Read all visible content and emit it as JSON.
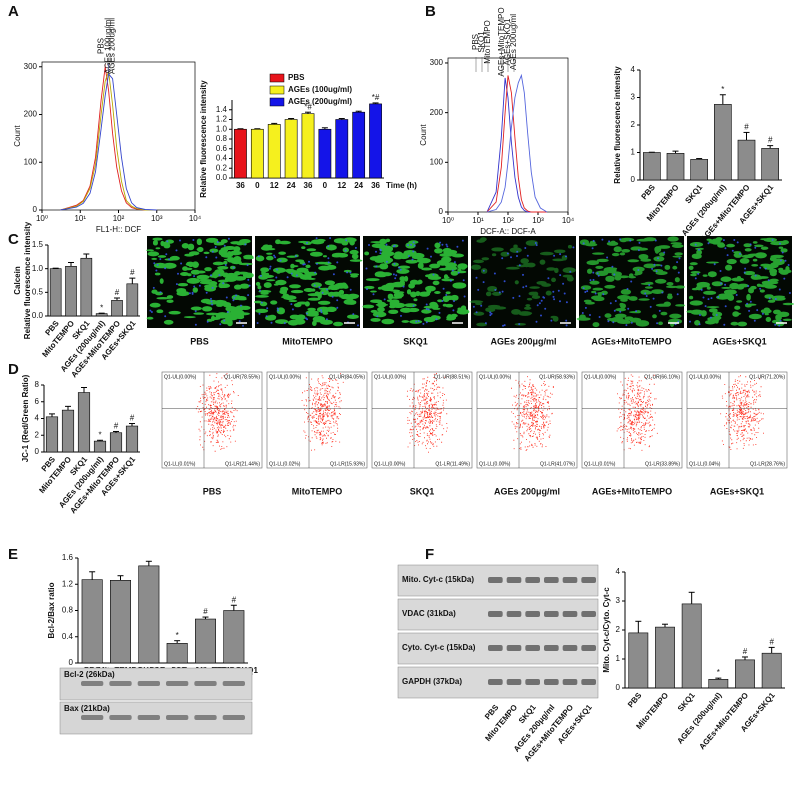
{
  "panel_labels": [
    "A",
    "B",
    "C",
    "D",
    "E",
    "F"
  ],
  "chart_data": [
    {
      "type": "line",
      "xlabel": "FL1-H:: DCF",
      "ylabel": "Count",
      "log_x": true,
      "xlim": [
        1,
        10000
      ],
      "xticks": [
        {
          "value": 1,
          "label": "10⁰"
        },
        {
          "value": 10,
          "label": "10¹"
        },
        {
          "value": 100,
          "label": "10²"
        },
        {
          "value": 1000,
          "label": "10³"
        },
        {
          "value": 10000,
          "label": "10⁴"
        }
      ],
      "ylim": [
        0,
        310
      ],
      "yticks": [
        0,
        100,
        200,
        300
      ],
      "x": [
        3,
        5,
        8,
        12,
        18,
        25,
        35,
        45,
        55,
        70,
        90,
        120,
        160,
        220,
        300,
        500,
        1000
      ],
      "series": [
        {
          "name": "PBS",
          "color": "#e02020",
          "values": [
            0,
            5,
            10,
            20,
            50,
            110,
            230,
            300,
            250,
            160,
            90,
            40,
            15,
            5,
            2,
            0,
            0
          ]
        },
        {
          "name": "AGEs 100ug/ml",
          "color": "#b8a800",
          "values": [
            0,
            4,
            8,
            18,
            45,
            95,
            200,
            270,
            290,
            220,
            130,
            60,
            20,
            8,
            3,
            0,
            0
          ]
        },
        {
          "name": "AGEs 200ug/ml",
          "color": "#3344cc",
          "values": [
            0,
            3,
            6,
            14,
            35,
            80,
            170,
            240,
            285,
            275,
            200,
            110,
            45,
            15,
            5,
            1,
            0
          ]
        }
      ]
    },
    {
      "type": "bar",
      "ylabel": [
        "Relative fluorescence intensity"
      ],
      "xlabel": "Time (h)",
      "legend": true,
      "categories": [
        "36",
        "0",
        "12",
        "24",
        "36",
        "0",
        "12",
        "24",
        "36"
      ],
      "ylim": [
        0,
        1.6
      ],
      "yticks": [
        {
          "value": 0,
          "label": "0.0"
        },
        0.2,
        0.4,
        0.6,
        0.8,
        {
          "value": 1,
          "label": "1.0"
        },
        1.2,
        1.4
      ],
      "series": [
        {
          "name": "PBS",
          "color": "#e8141c",
          "values": [
            1.0,
            null,
            null,
            null,
            null,
            null,
            null,
            null,
            null
          ],
          "errors": [
            0.01,
            null,
            null,
            null,
            null,
            null,
            null,
            null,
            null
          ],
          "markers": [
            null,
            null,
            null,
            null,
            null,
            null,
            null,
            null,
            null
          ]
        },
        {
          "name": "AGEs (100ug/ml)",
          "color": "#f5f01e",
          "values": [
            null,
            1.0,
            1.1,
            1.2,
            1.32,
            null,
            null,
            null,
            null
          ],
          "errors": [
            null,
            0.01,
            0.02,
            0.02,
            0.03,
            null,
            null,
            null,
            null
          ],
          "markers": [
            null,
            null,
            null,
            null,
            "*#",
            null,
            null,
            null,
            null
          ]
        },
        {
          "name": "AGEs (200ug/ml)",
          "color": "#1414e8",
          "values": [
            null,
            null,
            null,
            null,
            null,
            1.0,
            1.2,
            1.35,
            1.52
          ],
          "errors": [
            null,
            null,
            null,
            null,
            null,
            0.03,
            0.02,
            0.02,
            0.02
          ],
          "markers": [
            null,
            null,
            null,
            null,
            null,
            null,
            null,
            null,
            "*#"
          ]
        }
      ]
    },
    {
      "type": "line",
      "xlabel": "DCF-A:: DCF-A",
      "ylabel": "Count",
      "log_x": true,
      "xlim": [
        1,
        10000
      ],
      "xticks": [
        {
          "value": 1,
          "label": "10⁰"
        },
        {
          "value": 10,
          "label": "10¹"
        },
        {
          "value": 100,
          "label": "10²"
        },
        {
          "value": 1000,
          "label": "10³"
        },
        {
          "value": 10000,
          "label": "10⁴"
        }
      ],
      "ylim": [
        0,
        310
      ],
      "yticks": [
        0,
        100,
        200,
        300
      ],
      "x": [
        20,
        40,
        60,
        80,
        100,
        130,
        170,
        220,
        280,
        350,
        450,
        600,
        800,
        1200,
        2000
      ],
      "series": [
        {
          "color": "#3333cc",
          "values": [
            0,
            40,
            150,
            270,
            230,
            140,
            70,
            30,
            10,
            3,
            0,
            0,
            0,
            0,
            0
          ]
        },
        {
          "color": "#e02020",
          "values": [
            0,
            20,
            90,
            200,
            275,
            240,
            150,
            70,
            25,
            8,
            2,
            0,
            0,
            0,
            0
          ]
        },
        {
          "color": "#5566dd",
          "values": [
            0,
            5,
            20,
            50,
            100,
            170,
            230,
            260,
            275,
            240,
            160,
            80,
            30,
            8,
            0
          ]
        }
      ],
      "annotations": [
        "PBS",
        "SKQ1",
        "MitoTEMPO",
        "AGEs+MitoTEMPO",
        "AGEs+SKQ1",
        "AGEs 200ug/ml"
      ],
      "annotation_colors": [
        "#222222",
        "#222222",
        "#222222",
        "#e02020",
        "#e02020",
        "#e02020"
      ]
    },
    {
      "type": "bar",
      "ylabel": [
        "Relative fluorescence intensity"
      ],
      "color": "#8c8c8c",
      "categories": [
        "PBS",
        "MitoTEMPO",
        "SKQ1",
        "AGEs (200ug/ml)",
        "AGEs+MitoTEMPO",
        "AGEs+SKQ1"
      ],
      "ylim": [
        0,
        4
      ],
      "yticks": [
        0,
        1,
        2,
        3,
        4
      ],
      "values": [
        1.0,
        0.97,
        0.75,
        2.75,
        1.45,
        1.15
      ],
      "errors": [
        0.01,
        0.08,
        0.03,
        0.35,
        0.28,
        0.1
      ],
      "markers": [
        null,
        null,
        null,
        "*",
        "#",
        "#"
      ]
    },
    {
      "type": "bar",
      "ylabel": [
        "Calcein",
        "Relative fluorescence intensity"
      ],
      "color": "#8c8c8c",
      "categories": [
        "PBS",
        "MitoTEMPO",
        "SKQ1",
        "AGEs (200ug/ml)",
        "AGEs+MitoTEMPO",
        "AGEs+SKQ1"
      ],
      "ylim": [
        0,
        1.5
      ],
      "yticks": [
        {
          "value": 0,
          "label": "0.0"
        },
        0.5,
        {
          "value": 1,
          "label": "1.0"
        },
        1.5
      ],
      "values": [
        1.0,
        1.05,
        1.22,
        0.05,
        0.33,
        0.68
      ],
      "errors": [
        0.01,
        0.08,
        0.09,
        0.01,
        0.05,
        0.12
      ],
      "markers": [
        null,
        null,
        null,
        "*",
        "#",
        "#"
      ]
    },
    {
      "type": "bar",
      "ylabel": [
        "JC-1 (Red/Green Ratio)"
      ],
      "color": "#8c8c8c",
      "categories": [
        "PBS",
        "MitoTEMPO",
        "SKQ1",
        "AGEs (200ug/ml)",
        "AGEs+MitoTEMPO",
        "AGEs+SKQ1"
      ],
      "ylim": [
        0,
        8
      ],
      "yticks": [
        0,
        2,
        4,
        6,
        8
      ],
      "values": [
        4.2,
        5.0,
        7.1,
        1.3,
        2.3,
        3.1
      ],
      "errors": [
        0.35,
        0.45,
        0.6,
        0.1,
        0.15,
        0.3
      ],
      "markers": [
        null,
        null,
        null,
        "*",
        "#",
        "#"
      ]
    },
    {
      "type": "bar",
      "ylabel": [
        "Bcl-2/Bax ratio"
      ],
      "color": "#8c8c8c",
      "categories": [
        "PBS",
        "MitoTEMPO",
        "SKQ1",
        "AGEs 200μg/ml",
        "AGEs+MitoTEMPO",
        "AGEs+SKQ1"
      ],
      "ylim": [
        0,
        1.6
      ],
      "yticks": [
        0,
        0.4,
        0.8,
        1.2,
        1.6
      ],
      "values": [
        1.27,
        1.26,
        1.48,
        0.3,
        0.67,
        0.8
      ],
      "errors": [
        0.12,
        0.07,
        0.07,
        0.04,
        0.03,
        0.08
      ],
      "markers": [
        null,
        null,
        null,
        "*",
        "#",
        "#"
      ]
    },
    {
      "type": "bar",
      "ylabel": [
        "Mito. Cyt-c/Cyto. Cyt-c"
      ],
      "color": "#8c8c8c",
      "categories": [
        "PBS",
        "MitoTEMPO",
        "SKQ1",
        "AGEs (200ug/ml)",
        "AGEs+MitoTEMPO",
        "AGEs+SKQ1"
      ],
      "ylim": [
        0,
        4
      ],
      "yticks": [
        0,
        1,
        2,
        3,
        4
      ],
      "values": [
        1.9,
        2.1,
        2.9,
        0.3,
        0.97,
        1.2
      ],
      "errors": [
        0.4,
        0.1,
        0.4,
        0.04,
        0.1,
        0.2
      ],
      "markers": [
        null,
        null,
        null,
        "*",
        "#",
        "#"
      ]
    }
  ],
  "panel_c_images": {
    "captions": [
      "PBS",
      "MitoTEMPO",
      "SKQ1",
      "AGEs  200μg/ml",
      "AGEs+MitoTEMPO",
      "AGEs+SKQ1"
    ]
  },
  "panel_d_flow": [
    {
      "caption": "PBS",
      "quadrants": [
        "Q1-UL(0.00%)",
        "Q1-UR(78.55%)",
        "Q1-LL(0.01%)",
        "Q1-LR(21.44%)"
      ]
    },
    {
      "caption": "MitoTEMPO",
      "quadrants": [
        "Q1-UL(0.00%)",
        "Q1-UR(84.05%)",
        "Q1-LL(0.02%)",
        "Q1-LR(15.93%)"
      ]
    },
    {
      "caption": "SKQ1",
      "quadrants": [
        "Q1-UL(0.00%)",
        "Q1-UR(88.51%)",
        "Q1-LL(0.00%)",
        "Q1-LR(11.49%)"
      ]
    },
    {
      "caption": "AGEs  200μg/ml",
      "quadrants": [
        "Q1-UL(0.00%)",
        "Q1-UR(58.93%)",
        "Q1-LL(0.00%)",
        "Q1-LR(41.07%)"
      ]
    },
    {
      "caption": "AGEs+MitoTEMPO",
      "quadrants": [
        "Q1-UL(0.00%)",
        "Q1-UR(66.10%)",
        "Q1-LL(0.01%)",
        "Q1-LR(33.89%)"
      ]
    },
    {
      "caption": "AGEs+SKQ1",
      "quadrants": [
        "Q1-UL(0.00%)",
        "Q1-UR(71.20%)",
        "Q1-LL(0.04%)",
        "Q1-LR(28.76%)"
      ]
    }
  ],
  "panel_e_blots": {
    "rows": [
      "Bcl-2 (26kDa)",
      "Bax (21kDa)"
    ]
  },
  "panel_f_blots": {
    "rows": [
      "Mito. Cyt-c (15kDa)",
      "VDAC (31kDa)",
      "Cyto. Cyt-c (15kDa)",
      "GAPDH (37kDa)"
    ],
    "lanes": [
      "PBS",
      "MitoTEMPO",
      "SKQ1",
      "AGEs 200μg/ml",
      "AGEs+MitoTEMPO",
      "AGEs+SKQ1"
    ]
  }
}
